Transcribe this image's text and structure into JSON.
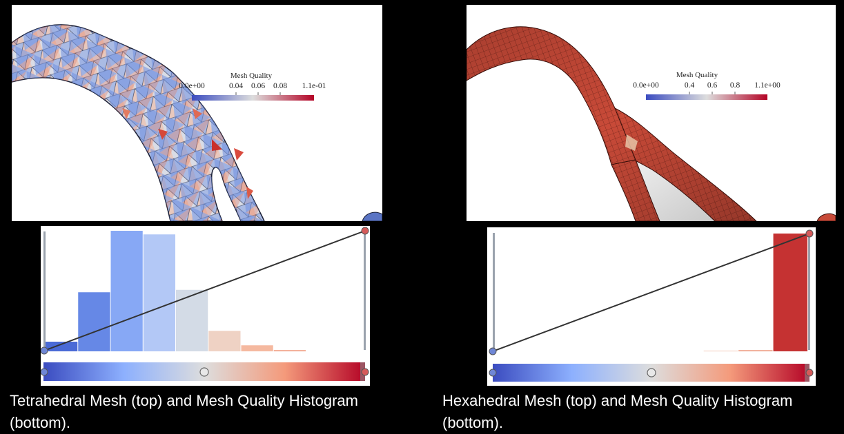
{
  "panels": [
    {
      "id": "tetra",
      "legend": {
        "title": "Mesh Quality",
        "ticks": [
          "0.0e+00",
          "0.04",
          "0.06",
          "0.08",
          "1.1e-01"
        ]
      },
      "histogram": {
        "bin_fractions": [
          0.08,
          0.49,
          1.0,
          0.97,
          0.51,
          0.17,
          0.05,
          0.01
        ],
        "bin_colors": [
          "#4a6ad6",
          "#6688e6",
          "#87a8f5",
          "#b3c8f6",
          "#d3dbe6",
          "#efd2c4",
          "#f5b9a0",
          "#f0a085"
        ]
      },
      "caption": {
        "line1": "Tetrahedral Mesh (top) and Mesh Quality Histogram",
        "line2": "(bottom)."
      }
    },
    {
      "id": "hexa",
      "legend": {
        "title": "Mesh Quality",
        "ticks": [
          "0.0e+00",
          "0.4",
          "0.6",
          "0.8",
          "1.1e+00"
        ]
      },
      "histogram": {
        "bin_fractions": [
          0,
          0,
          0,
          0,
          0,
          0,
          0.005,
          0.01,
          1.0
        ],
        "bin_colors": [
          "#4a6ad6",
          "#6688e6",
          "#87a8f5",
          "#b3c8f6",
          "#d3dbe6",
          "#efd2c4",
          "#f3c0ab",
          "#ee9f85",
          "#c53232"
        ]
      },
      "caption": {
        "line1": "Hexahedral Mesh (top) and Mesh Quality Histogram",
        "line2": "(bottom)."
      }
    }
  ],
  "colors": {
    "cool": "#3b4cc0",
    "mid": "#dddddd",
    "warm": "#b40426",
    "hex_surface": "#c84a38"
  }
}
